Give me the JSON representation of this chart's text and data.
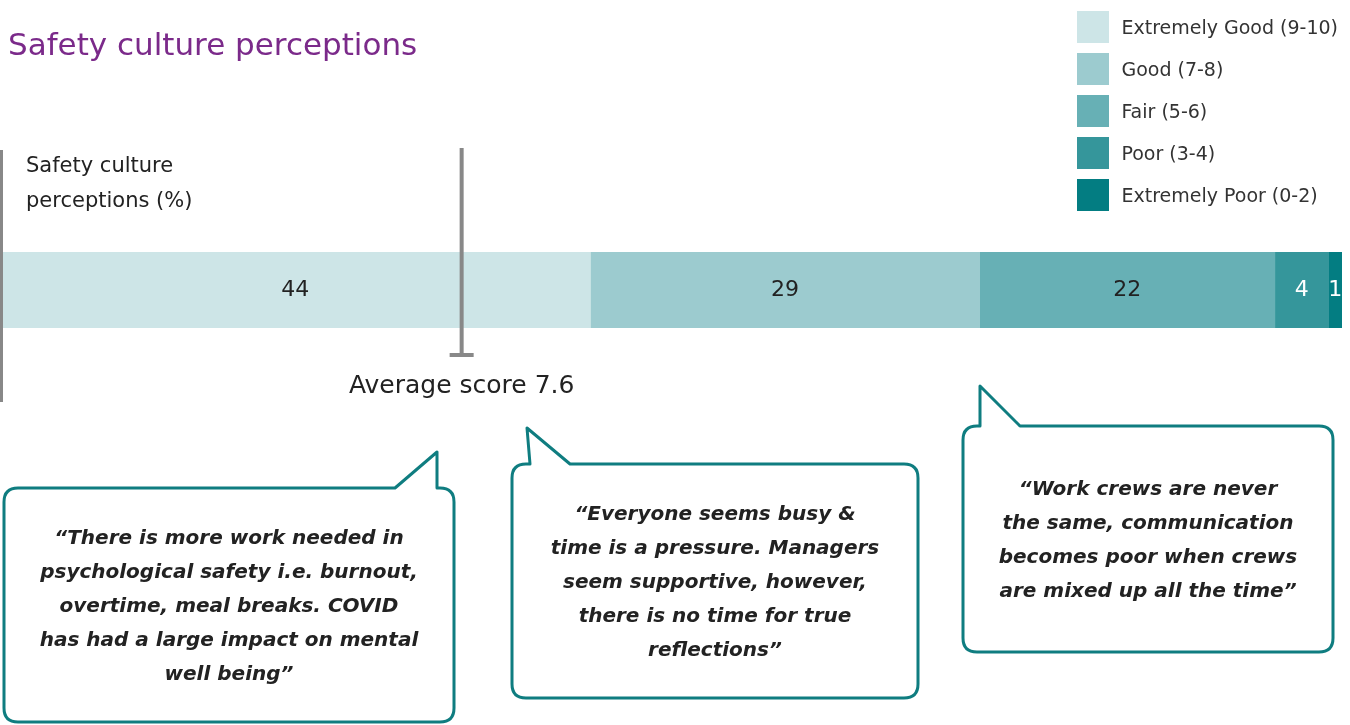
{
  "chart_data": {
    "type": "bar",
    "title": "Safety culture perceptions",
    "ylabel": "Safety culture perceptions (%)",
    "orientation": "horizontal",
    "stacked": true,
    "categories": [
      null
    ],
    "series": [
      {
        "name": "Extremely Good (9-10)",
        "color": "#cde5e7",
        "values": [
          44
        ]
      },
      {
        "name": "Good (7-8)",
        "color": "#9ccbcf",
        "values": [
          29
        ]
      },
      {
        "name": "Fair (5-6)",
        "color": "#67b0b5",
        "values": [
          22
        ]
      },
      {
        "name": "Poor (3-4)",
        "color": "#35969b",
        "values": [
          4
        ]
      },
      {
        "name": "Extremely Poor (0-2)",
        "color": "#037d82",
        "values": [
          1
        ]
      }
    ],
    "data_labels": true,
    "legend": "top right",
    "ref_lines": [
      {
        "axis": "x",
        "value": 34.4,
        "label": "Average score 7.6",
        "color": "#888888"
      }
    ],
    "annotations": [
      "“There is more work needed in psychological safety i.e. burnout, overtime, meal breaks. COVID has had a large impact on mental well being”",
      "“Everyone seems busy & time is a pressure. Managers seem supportive, however, there is no time for true reflections”",
      "“Work crews are never the same, communication becomes poor when crews are mixed up all the time”"
    ]
  }
}
